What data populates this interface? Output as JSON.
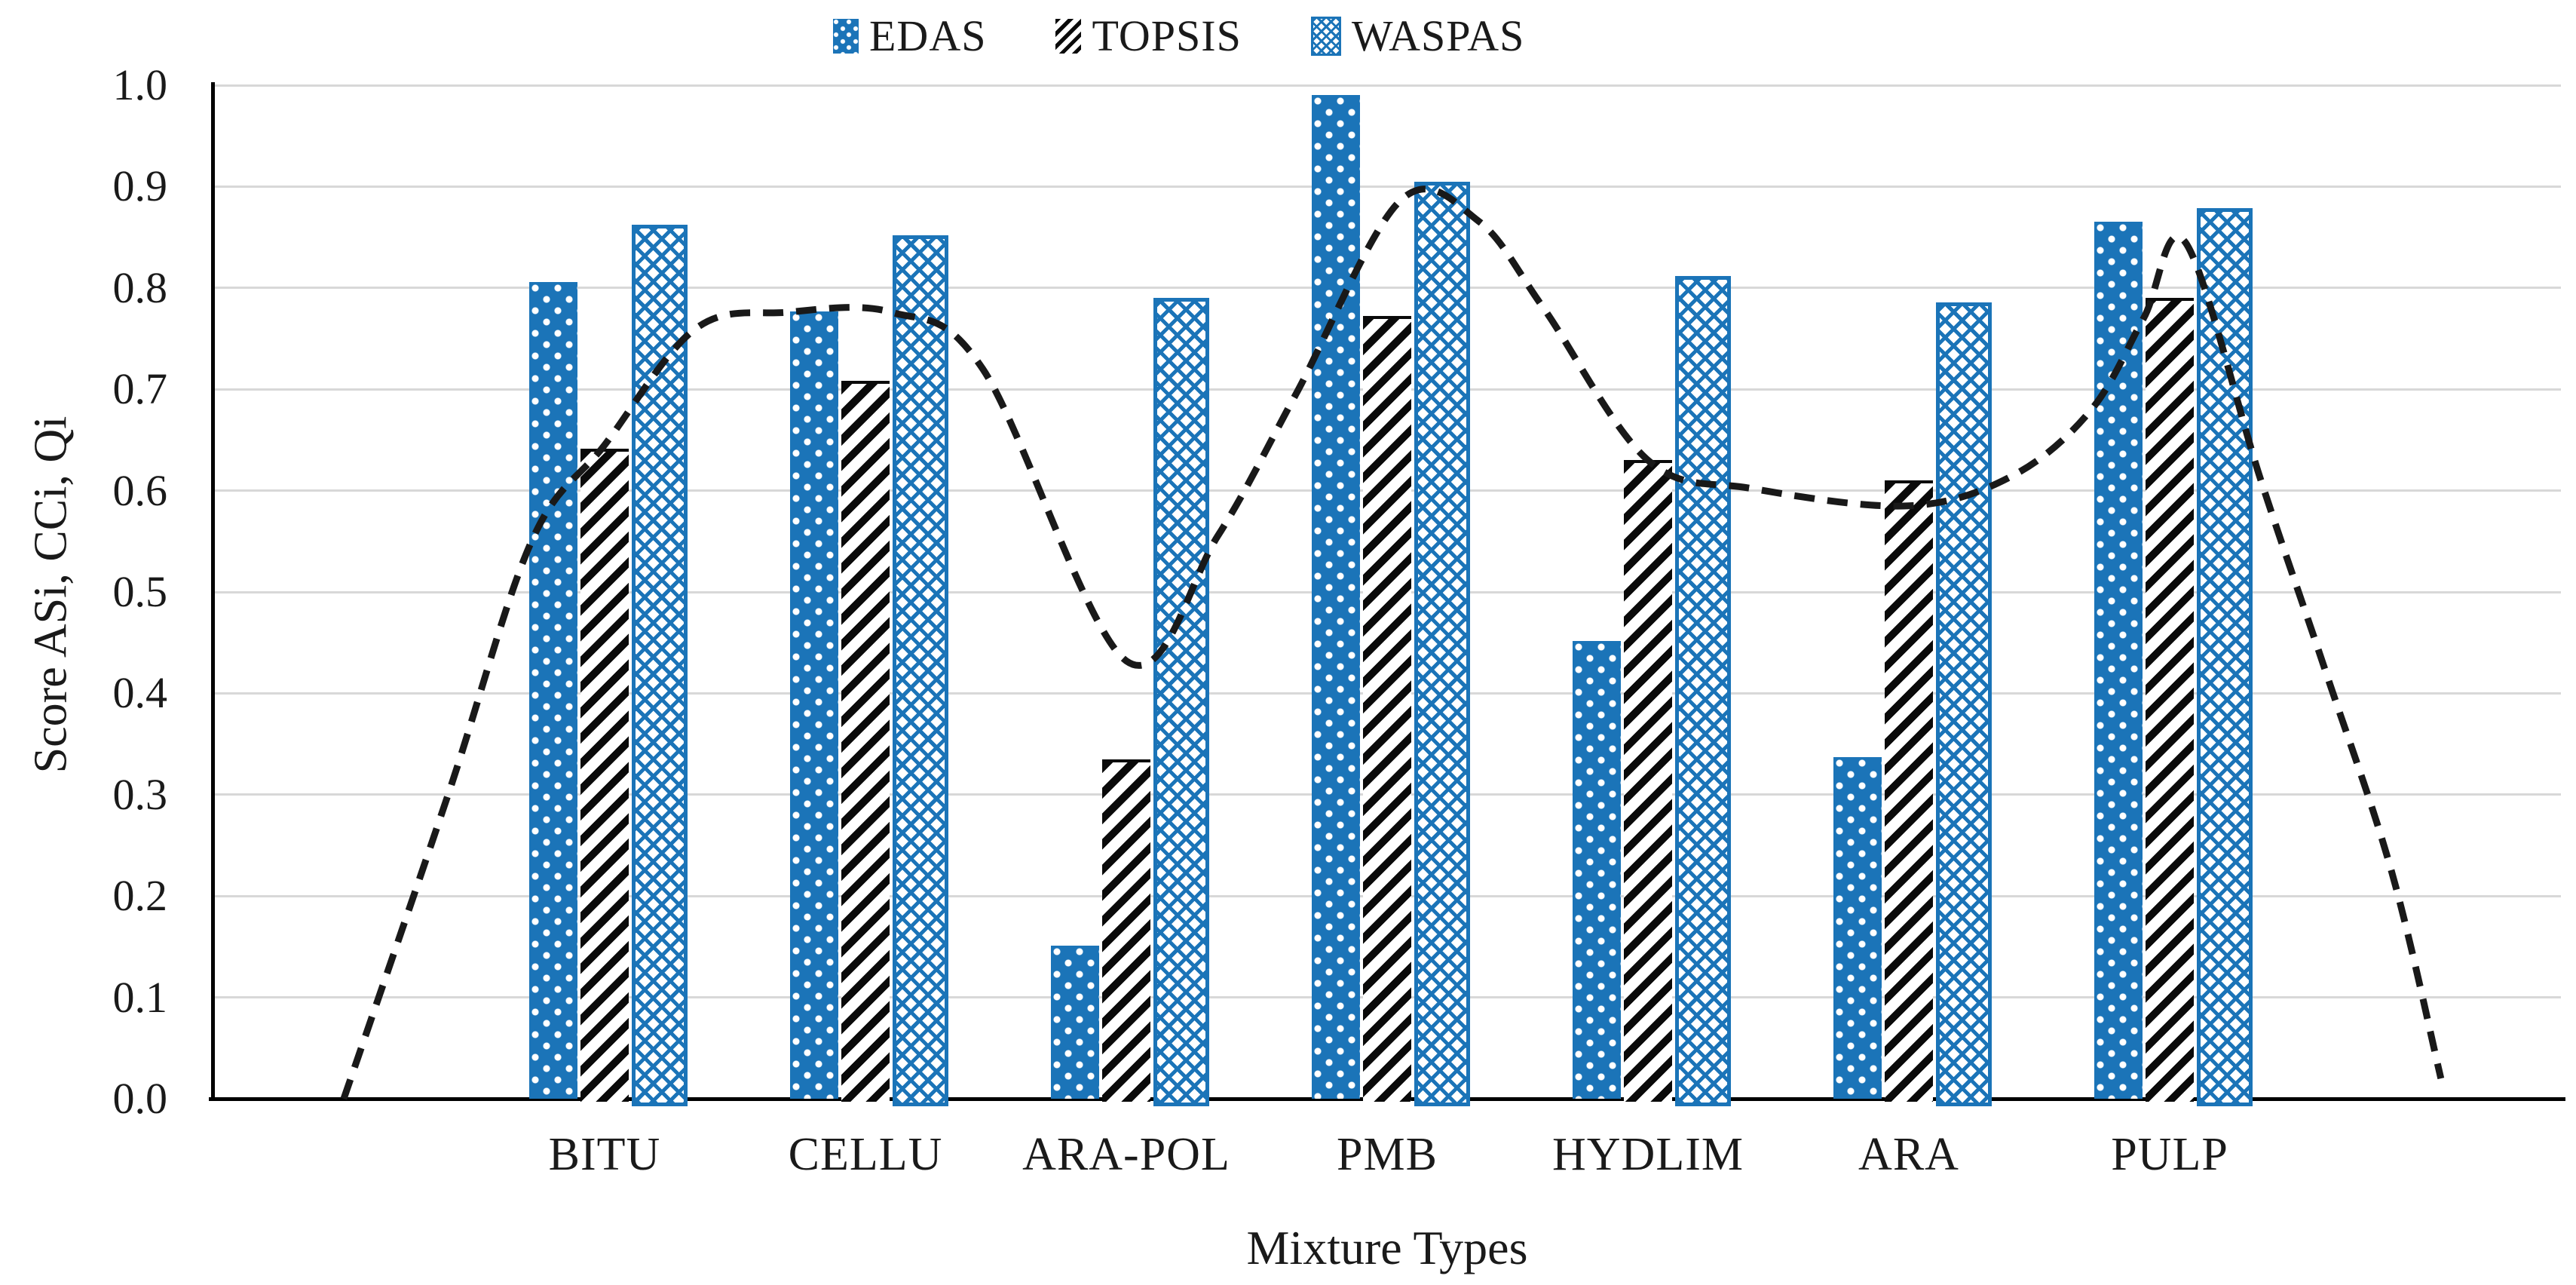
{
  "colors": {
    "bar_blue": "#1b74b8",
    "hatch_black": "#0a0a0a",
    "gridline": "#d8d8d8",
    "axis": "#000000",
    "trendline": "#191919",
    "text": "#1a1a1a",
    "background": "#ffffff"
  },
  "legend": {
    "position": "top-center",
    "items": [
      {
        "label": "EDAS",
        "swatch_icon": "blue-dotted-square-icon",
        "pattern": "p-edas"
      },
      {
        "label": "TOPSIS",
        "swatch_icon": "black-diagonal-hatch-icon",
        "pattern": "p-topsis"
      },
      {
        "label": "WASPAS",
        "swatch_icon": "blue-crosshatch-icon",
        "pattern": "p-waspas"
      }
    ]
  },
  "axes": {
    "y_title": "Score ASi, CCi, Qi",
    "x_title": "Mixture Types",
    "y_ticks": [
      "0.0",
      "0.1",
      "0.2",
      "0.3",
      "0.4",
      "0.5",
      "0.6",
      "0.7",
      "0.8",
      "0.9",
      "1.0"
    ]
  },
  "chart_data": {
    "type": "bar",
    "title": "",
    "xlabel": "Mixture Types",
    "ylabel": "Score ASi, CCi, Qi",
    "ylim": [
      0,
      1.0
    ],
    "ytick_step": 0.1,
    "grid": true,
    "legend_position": "top",
    "categories": [
      "BITU",
      "CELLU",
      "ARA-POL",
      "PMB",
      "HYDLIM",
      "ARA",
      "PULP"
    ],
    "series": [
      {
        "name": "EDAS",
        "pattern": "p-edas",
        "values": [
          0.806,
          0.777,
          0.151,
          0.99,
          0.452,
          0.337,
          0.865
        ]
      },
      {
        "name": "TOPSIS",
        "pattern": "p-topsis",
        "values": [
          0.641,
          0.708,
          0.335,
          0.772,
          0.63,
          0.61,
          0.79
        ]
      },
      {
        "name": "WASPAS",
        "pattern": "p-waspas",
        "values": [
          0.862,
          0.852,
          0.79,
          0.905,
          0.812,
          0.786,
          0.879
        ]
      }
    ],
    "trendline": {
      "style": "dashed",
      "description": "smooth dashed black curve spanning axis, starting and ending at zero beyond outer categories",
      "points_slot_value": [
        [
          0.0,
          0.0
        ],
        [
          0.4,
          0.3
        ],
        [
          0.72,
          0.55
        ],
        [
          1.0,
          0.645
        ],
        [
          1.35,
          0.76
        ],
        [
          1.7,
          0.776
        ],
        [
          2.1,
          0.776
        ],
        [
          2.45,
          0.72
        ],
        [
          3.0,
          0.432
        ],
        [
          3.35,
          0.555
        ],
        [
          3.65,
          0.695
        ],
        [
          4.05,
          0.886
        ],
        [
          4.35,
          0.866
        ],
        [
          4.6,
          0.78
        ],
        [
          5.0,
          0.63
        ],
        [
          5.4,
          0.602
        ],
        [
          6.0,
          0.585
        ],
        [
          6.4,
          0.615
        ],
        [
          6.7,
          0.68
        ],
        [
          6.9,
          0.77
        ],
        [
          7.06,
          0.845
        ],
        [
          7.35,
          0.61
        ],
        [
          7.6,
          0.42
        ],
        [
          7.85,
          0.225
        ],
        [
          8.04,
          0.02
        ]
      ]
    }
  }
}
